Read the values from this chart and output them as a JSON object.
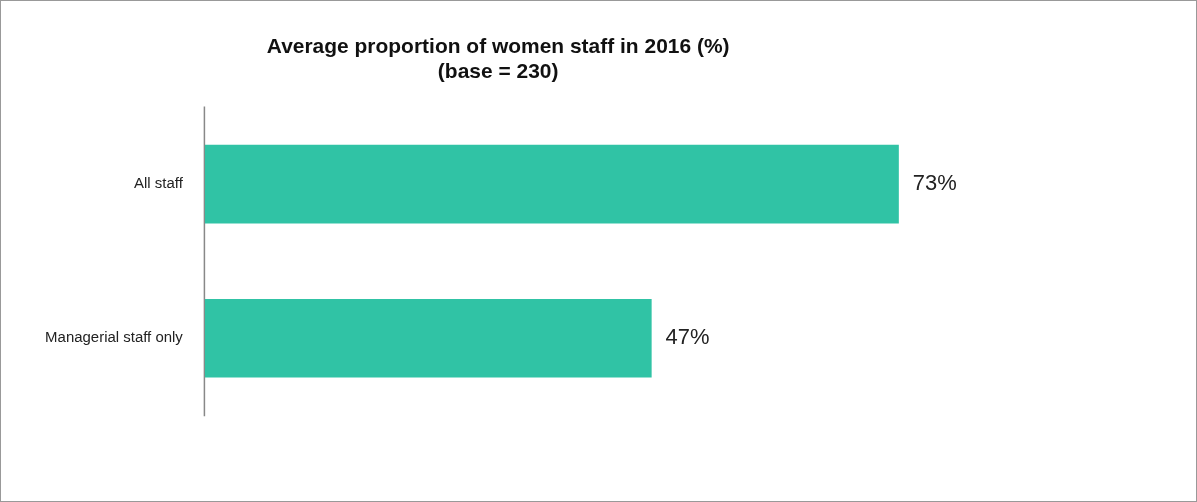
{
  "chart_data": {
    "type": "bar",
    "orientation": "horizontal",
    "title": "Average proportion of women staff in 2016 (%)\n(base = 230)",
    "categories": [
      "All staff",
      "Managerial staff only"
    ],
    "values": [
      73,
      47
    ],
    "value_labels": [
      "73%",
      "47%"
    ],
    "color": "#30c3a5",
    "grid": false,
    "legend": false
  }
}
